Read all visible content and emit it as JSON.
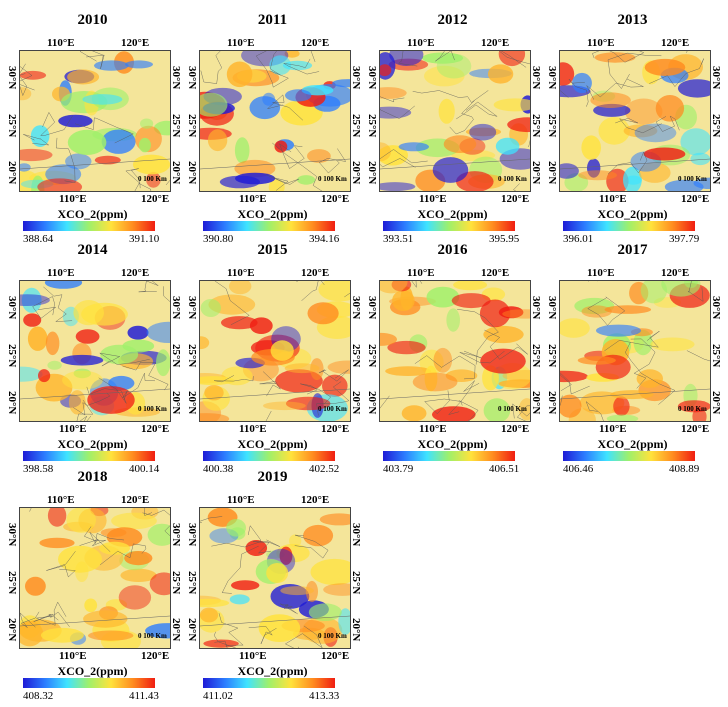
{
  "figure": {
    "lon_labels": [
      "110°E",
      "120°E"
    ],
    "lat_labels": [
      "20°N",
      "25°N",
      "30°N"
    ],
    "scale_label": "0 100 Km",
    "legend_title": "XCO_2(ppm)"
  },
  "panels": [
    {
      "year": "2010",
      "min": "388.64",
      "max": "391.10"
    },
    {
      "year": "2011",
      "min": "390.80",
      "max": "394.16"
    },
    {
      "year": "2012",
      "min": "393.51",
      "max": "395.95"
    },
    {
      "year": "2013",
      "min": "396.01",
      "max": "397.79"
    },
    {
      "year": "2014",
      "min": "398.58",
      "max": "400.14"
    },
    {
      "year": "2015",
      "min": "400.38",
      "max": "402.52"
    },
    {
      "year": "2016",
      "min": "403.79",
      "max": "406.51"
    },
    {
      "year": "2017",
      "min": "406.46",
      "max": "408.89"
    },
    {
      "year": "2018",
      "min": "408.32",
      "max": "411.43"
    },
    {
      "year": "2019",
      "min": "411.02",
      "max": "413.33"
    }
  ],
  "colors": {
    "low": "#1f1bd6",
    "mid_low": "#3fe3ff",
    "mid": "#ffe23c",
    "high": "#f01d12",
    "background_field": "#f4e59a"
  }
}
